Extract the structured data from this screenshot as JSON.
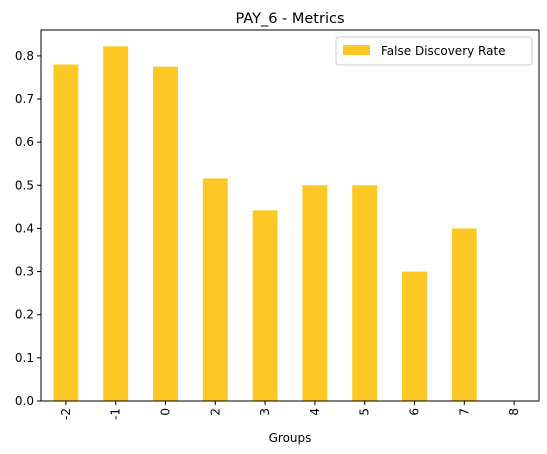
{
  "chart_data": {
    "type": "bar",
    "title": "PAY_6 - Metrics",
    "xlabel": "Groups",
    "ylabel": "",
    "categories": [
      "-2",
      "-1",
      "0",
      "2",
      "3",
      "4",
      "5",
      "6",
      "7",
      "8"
    ],
    "series": [
      {
        "name": "False Discovery Rate",
        "color": "#fdc826",
        "values": [
          0.78,
          0.822,
          0.775,
          0.516,
          0.442,
          0.5,
          0.5,
          0.3,
          0.4,
          0.0
        ]
      }
    ],
    "ylim": [
      0,
      0.86
    ],
    "yticks": [
      "0.0",
      "0.1",
      "0.2",
      "0.3",
      "0.4",
      "0.5",
      "0.6",
      "0.7",
      "0.8"
    ],
    "grid": false,
    "legend_position": "top-right"
  }
}
